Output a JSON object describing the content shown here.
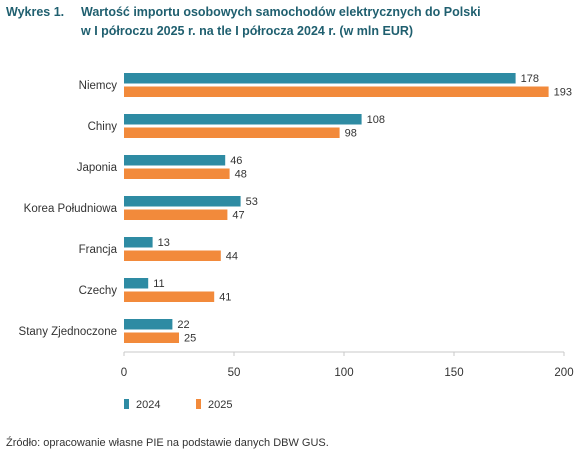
{
  "title": {
    "prefix": "Wykres 1.",
    "line1": "Wartość importu osobowych samochodów elektrycznych do Polski",
    "line2": "w I półroczu 2025 r. na tle I półrocza 2024 r. (w mln EUR)"
  },
  "source": "Źródło: opracowanie własne PIE na podstawie danych DBW GUS.",
  "chart_data": {
    "type": "bar",
    "orientation": "horizontal",
    "title": "Wartość importu osobowych samochodów elektrycznych do Polski w I półroczu 2025 r. na tle I półrocza 2024 r. (w mln EUR)",
    "categories": [
      "Niemcy",
      "Chiny",
      "Japonia",
      "Korea Południowa",
      "Francja",
      "Czechy",
      "Stany Zjednoczone"
    ],
    "series": [
      {
        "name": "2024",
        "color": "#2e8ba3",
        "values": [
          178,
          108,
          46,
          53,
          13,
          11,
          22
        ]
      },
      {
        "name": "2025",
        "color": "#f28a3b",
        "values": [
          193,
          98,
          48,
          47,
          44,
          41,
          25
        ]
      }
    ],
    "xlim": [
      0,
      200
    ],
    "xticks": [
      0,
      50,
      100,
      150,
      200
    ],
    "grid": false,
    "legend_position": "bottom-left",
    "data_labels": true
  }
}
